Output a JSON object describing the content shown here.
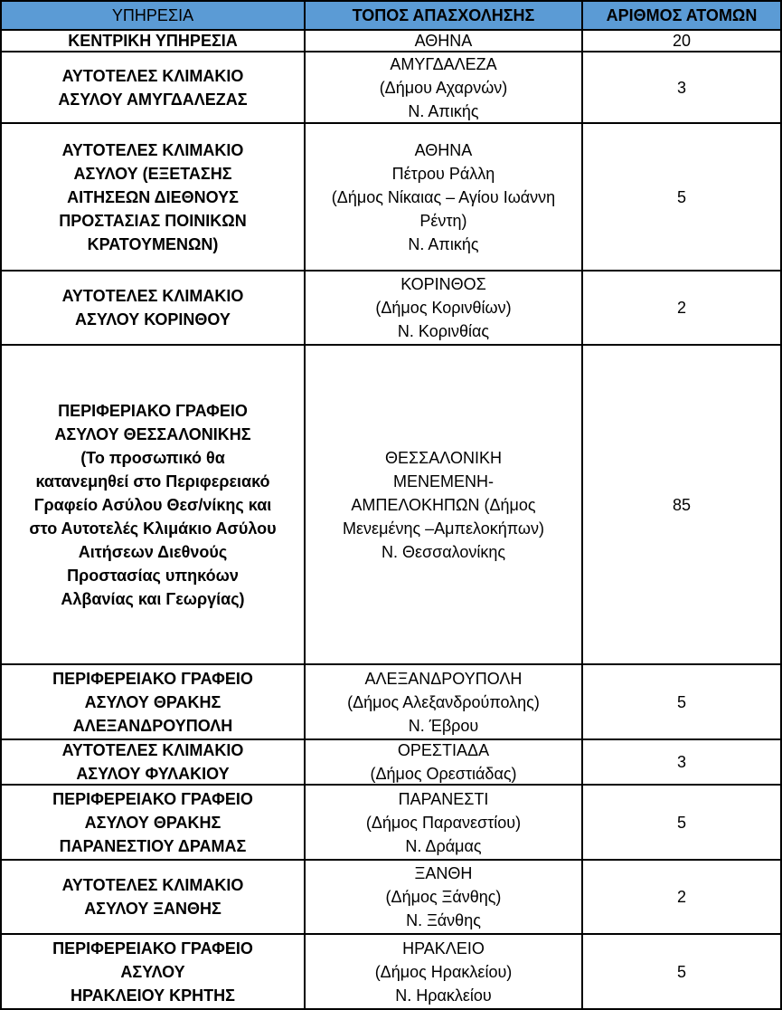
{
  "header": {
    "service": "ΥΠΗΡΕΣΙΑ",
    "location": "ΤΟΠΟΣ ΑΠΑΣΧΟΛΗΣΗΣ",
    "count": "ΑΡΙΘΜΟΣ ΑΤΟΜΩΝ"
  },
  "header_color": "#5b9bd5",
  "rows": [
    {
      "service": "ΚΕΝΤΡΙΚΗ ΥΠΗΡΕΣΙΑ",
      "location": "ΑΘΗΝΑ",
      "count": "20"
    },
    {
      "service": "ΑΥΤΟΤΕΛΕΣ ΚΛΙΜΑΚΙΟ\nΑΣΥΛΟΥ ΑΜΥΓΔΑΛΕΖΑΣ",
      "location": "ΑΜΥΓΔΑΛΕΖΑ\n(Δήμου Αχαρνών)\nΝ. Απικής",
      "count": "3"
    },
    {
      "service": "ΑΥΤΟΤΕΛΕΣ ΚΛΙΜΑΚΙΟ\nΑΣΥΛΟΥ (ΕΞΕΤΑΣΗΣ\nΑΙΤΗΣΕΩΝ ΔΙΕΘΝΟΥΣ\nΠΡΟΣΤΑΣΙΑΣ ΠΟΙΝΙΚΩΝ\nΚΡΑΤΟΥΜΕΝΩΝ)",
      "location": "ΑΘΗΝΑ\nΠέτρου Ράλλη\n(Δήμος Νίκαιας – Αγίου Ιωάννη\nΡέντη)\nΝ. Απικής",
      "count": "5"
    },
    {
      "service": "ΑΥΤΟΤΕΛΕΣ ΚΛΙΜΑΚΙΟ\nΑΣΥΛΟΥ ΚΟΡΙΝΘΟΥ",
      "location": "ΚΟΡΙΝΘΟΣ\n(Δήμος Κορινθίων)\nΝ. Κορινθίας",
      "count": "2"
    },
    {
      "service": "ΠΕΡΙΦΕΡΙΑΚΟ ΓΡΑΦΕΙΟ\nΑΣΥΛΟΥ ΘΕΣΣΑΛΟΝΙΚΗΣ\n(Το προσωπικό θα\nκατανεμηθεί στο Περιφερειακό\nΓραφείο Ασύλου Θεσ/νίκης και\nστο Αυτοτελές Κλιμάκιο Ασύλου\nΑιτήσεων Διεθνούς\nΠροστασίας υπηκόων\nΑλβανίας και Γεωργίας)",
      "location": "ΘΕΣΣΑΛΟΝΙΚΗ\nΜΕΝΕΜΕΝΗ-\nΑΜΠΕΛΟΚΗΠΩΝ (Δήμος\nΜενεμένης –Αμπελοκήπων)\nΝ. Θεσσαλονίκης",
      "count": "85"
    },
    {
      "service": "ΠΕΡΙΦΕΡΕΙΑΚΟ ΓΡΑΦΕΙΟ\nΑΣΥΛΟΥ ΘΡΑΚΗΣ\nΑΛΕΞΑΝΔΡΟΥΠΟΛΗ",
      "location": "ΑΛΕΞΑΝΔΡΟΥΠΟΛΗ\n(Δήμος Αλεξανδρούπολης)\nΝ. Έβρου",
      "count": "5"
    },
    {
      "service": "ΑΥΤΟΤΕΛΕΣ ΚΛΙΜΑΚΙΟ\nΑΣΥΛΟΥ  ΦΥΛΑΚΙΟΥ",
      "location": "ΟΡΕΣΤΙΑΔΑ\n(Δήμος Ορεστιάδας)",
      "count": "3"
    },
    {
      "service": "ΠΕΡΙΦΕΡΕΙΑΚΟ ΓΡΑΦΕΙΟ\nΑΣΥΛΟΥ ΘΡΑΚΗΣ\nΠΑΡΑΝΕΣΤΙΟΥ ΔΡΑΜΑΣ",
      "location": "ΠΑΡΑΝΕΣΤΙ\n(Δήμος Παρανεστίου)\nΝ. Δράμας",
      "count": "5"
    },
    {
      "service": "ΑΥΤΟΤΕΛΕΣ ΚΛΙΜΑΚΙΟ\nΑΣΥΛΟΥ ΞΑΝΘΗΣ",
      "location": "ΞΑΝΘΗ\n(Δήμος Ξάνθης)\nΝ. Ξάνθης",
      "count": "2"
    },
    {
      "service": "ΠΕΡΙΦΕΡΕΙΑΚΟ ΓΡΑΦΕΙΟ\nΑΣΥΛΟΥ\nΗΡΑΚΛΕΙΟΥ ΚΡΗΤΗΣ",
      "location": "ΗΡΑΚΛΕΙΟ\n(Δήμος Ηρακλείου)\nΝ. Ηρακλείου",
      "count": "5"
    }
  ]
}
